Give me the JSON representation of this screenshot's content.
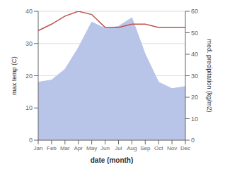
{
  "chart_data": {
    "type": "line",
    "xlabel": "date (month)",
    "ylabel": "max temp (C)",
    "y2label": "med. precipitation (kg/m2)",
    "categories": [
      "Jan",
      "Feb",
      "Mar",
      "Apr",
      "May",
      "Jun",
      "Jul",
      "Aug",
      "Sep",
      "Oct",
      "Nov",
      "Dec"
    ],
    "series": [
      {
        "type": "area",
        "axis": "y2",
        "color": "#b8c4e8",
        "values": [
          27,
          28,
          33,
          43,
          55,
          52,
          53,
          57,
          40,
          27,
          24,
          25
        ]
      },
      {
        "type": "line",
        "color": "#c0504d",
        "values": [
          34.0,
          36.0,
          38.5,
          40.0,
          39.0,
          35.0,
          35.0,
          36.0,
          36.0,
          35.0,
          35.0,
          35.0
        ]
      }
    ],
    "ylim": [
      0,
      40
    ],
    "yticks": [
      0,
      10,
      20,
      30,
      40
    ],
    "y2lim": [
      0,
      60
    ],
    "y2ticks": [
      0,
      10,
      20,
      30,
      40,
      50,
      60
    ],
    "grid": true
  }
}
